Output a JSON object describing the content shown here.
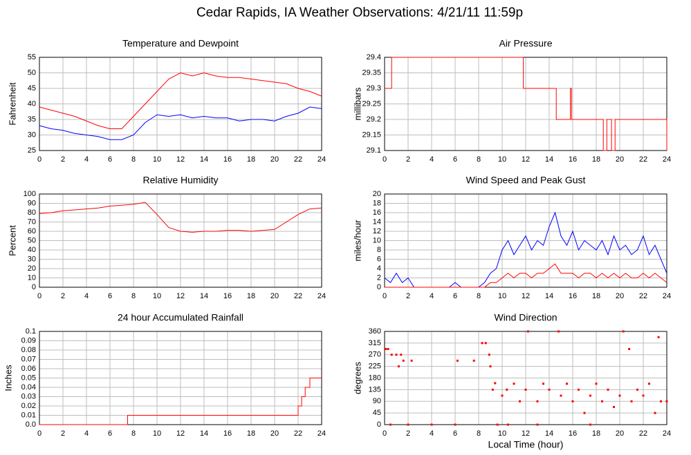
{
  "title": "Cedar Rapids, IA Weather Observations: 4/21/11 11:59p",
  "chart_data": [
    {
      "type": "line",
      "title": "Temperature and Dewpoint",
      "ylabel": "Fahrenheit",
      "grid": true,
      "xlim": [
        0,
        24
      ],
      "xticks": [
        0,
        2,
        4,
        6,
        8,
        10,
        12,
        14,
        16,
        18,
        20,
        22,
        24
      ],
      "ylim": [
        25,
        55
      ],
      "yticks": [
        25,
        30,
        35,
        40,
        45,
        50,
        55
      ],
      "x": [
        0,
        1,
        2,
        3,
        4,
        5,
        6,
        7,
        8,
        9,
        10,
        11,
        12,
        13,
        14,
        15,
        16,
        17,
        18,
        19,
        20,
        21,
        22,
        23,
        24
      ],
      "series": [
        {
          "name": "Temperature",
          "color": "#ff0000",
          "values": [
            39,
            38,
            37,
            36,
            34.5,
            33,
            32,
            32,
            36,
            40,
            44,
            48,
            50,
            49,
            50,
            49,
            48.5,
            48.5,
            48,
            47.5,
            47,
            46.5,
            45,
            44,
            42.5
          ]
        },
        {
          "name": "Dewpoint",
          "color": "#0000ff",
          "values": [
            33,
            32,
            31.5,
            30.5,
            30,
            29.5,
            28.5,
            28.5,
            30,
            34,
            36.5,
            36,
            36.5,
            35.5,
            36,
            35.5,
            35.5,
            34.5,
            35,
            35,
            34.5,
            36,
            37,
            39,
            38.5
          ]
        }
      ]
    },
    {
      "type": "line",
      "title": "Air Pressure",
      "ylabel": "millibars",
      "grid": true,
      "xlim": [
        0,
        24
      ],
      "xticks": [
        0,
        2,
        4,
        6,
        8,
        10,
        12,
        14,
        16,
        18,
        20,
        22,
        24
      ],
      "ylim": [
        29.1,
        29.4
      ],
      "yticks": [
        29.1,
        29.15,
        29.2,
        29.25,
        29.3,
        29.35,
        29.4
      ],
      "x": [
        0,
        0.6,
        0.6,
        11.8,
        11.8,
        14.6,
        14.6,
        15.8,
        15.8,
        15.9,
        15.9,
        18.6,
        18.6,
        18.9,
        18.9,
        19.3,
        19.3,
        19.6,
        19.6,
        24,
        24
      ],
      "series": [
        {
          "name": "Pressure",
          "color": "#ff0000",
          "values": [
            29.3,
            29.3,
            29.4,
            29.4,
            29.3,
            29.3,
            29.2,
            29.2,
            29.3,
            29.3,
            29.2,
            29.2,
            29.1,
            29.1,
            29.2,
            29.2,
            29.1,
            29.1,
            29.2,
            29.2,
            29.1
          ]
        }
      ]
    },
    {
      "type": "line",
      "title": "Relative Humidity",
      "ylabel": "Percent",
      "grid": true,
      "xlim": [
        0,
        24
      ],
      "xticks": [
        0,
        2,
        4,
        6,
        8,
        10,
        12,
        14,
        16,
        18,
        20,
        22,
        24
      ],
      "ylim": [
        0,
        100
      ],
      "yticks": [
        0,
        10,
        20,
        30,
        40,
        50,
        60,
        70,
        80,
        90,
        100
      ],
      "x": [
        0,
        1,
        2,
        3,
        4,
        5,
        6,
        7,
        8,
        9,
        10,
        11,
        12,
        13,
        14,
        15,
        16,
        17,
        18,
        19,
        20,
        21,
        22,
        23,
        24
      ],
      "series": [
        {
          "name": "Humidity",
          "color": "#ff0000",
          "values": [
            79,
            80,
            82,
            83,
            84,
            85,
            87,
            88,
            89,
            91,
            78,
            64,
            60,
            59,
            60,
            60,
            61,
            61,
            60,
            61,
            62,
            70,
            78,
            84,
            85
          ]
        }
      ]
    },
    {
      "type": "line",
      "title": "Wind Speed and Peak Gust",
      "ylabel": "miles/hour",
      "grid": true,
      "xlim": [
        0,
        24
      ],
      "xticks": [
        0,
        2,
        4,
        6,
        8,
        10,
        12,
        14,
        16,
        18,
        20,
        22,
        24
      ],
      "ylim": [
        0,
        20
      ],
      "yticks": [
        0,
        2,
        4,
        6,
        8,
        10,
        12,
        14,
        16,
        18,
        20
      ],
      "x": [
        0,
        0.5,
        1,
        1.5,
        2,
        2.5,
        3,
        3.5,
        4,
        4.5,
        5,
        5.5,
        6,
        6.5,
        7,
        7.5,
        8,
        8.5,
        9,
        9.5,
        10,
        10.5,
        11,
        11.5,
        12,
        12.5,
        13,
        13.5,
        14,
        14.5,
        15,
        15.5,
        16,
        16.5,
        17,
        17.5,
        18,
        18.5,
        19,
        19.5,
        20,
        20.5,
        21,
        21.5,
        22,
        22.5,
        23,
        23.5,
        24
      ],
      "series": [
        {
          "name": "Peak Gust",
          "color": "#0000ff",
          "values": [
            2,
            1,
            3,
            1,
            2,
            0,
            0,
            0,
            0,
            0,
            0,
            0,
            1,
            0,
            0,
            0,
            0,
            1,
            3,
            4,
            8,
            10,
            7,
            9,
            11,
            8,
            10,
            9,
            13,
            16,
            11,
            9,
            12,
            8,
            10,
            9,
            8,
            10,
            7,
            11,
            8,
            9,
            7,
            8,
            11,
            7,
            9,
            6,
            3
          ]
        },
        {
          "name": "Wind Speed",
          "color": "#ff0000",
          "values": [
            0,
            0,
            0,
            0,
            0,
            0,
            0,
            0,
            0,
            0,
            0,
            0,
            0,
            0,
            0,
            0,
            0,
            0,
            1,
            1,
            2,
            3,
            2,
            3,
            3,
            2,
            3,
            3,
            4,
            5,
            3,
            3,
            3,
            2,
            3,
            3,
            2,
            3,
            2,
            3,
            2,
            3,
            2,
            2,
            3,
            2,
            3,
            2,
            1
          ]
        }
      ]
    },
    {
      "type": "line",
      "title": "24 hour Accumulated Rainfall",
      "ylabel": "Inches",
      "grid": true,
      "xlim": [
        0,
        24
      ],
      "xticks": [
        0,
        2,
        4,
        6,
        8,
        10,
        12,
        14,
        16,
        18,
        20,
        22,
        24
      ],
      "ylim": [
        0,
        0.1
      ],
      "yticks": [
        {
          "value": 0,
          "label": "0.0"
        },
        0.01,
        0.02,
        0.03,
        0.04,
        0.05,
        0.06,
        0.07,
        0.08,
        0.09,
        0.1
      ],
      "x": [
        0,
        7.5,
        7.5,
        22,
        22,
        22.3,
        22.3,
        22.6,
        22.6,
        23,
        23,
        24
      ],
      "series": [
        {
          "name": "Rainfall",
          "color": "#ff0000",
          "values": [
            0,
            0,
            0.01,
            0.01,
            0.02,
            0.02,
            0.03,
            0.03,
            0.04,
            0.04,
            0.05,
            0.05
          ]
        }
      ]
    },
    {
      "type": "scatter",
      "title": "Wind Direction",
      "ylabel": "degrees",
      "xlabel": "Local Time (hour)",
      "grid": true,
      "xlim": [
        0,
        24
      ],
      "xticks": [
        0,
        2,
        4,
        6,
        8,
        10,
        12,
        14,
        16,
        18,
        20,
        22,
        24
      ],
      "ylim": [
        0,
        360
      ],
      "yticks": [
        0,
        45,
        90,
        135,
        180,
        225,
        270,
        315,
        360
      ],
      "x": [
        0.1,
        0.3,
        0.6,
        1,
        1.2,
        1.4,
        1.6,
        2.3,
        0.5,
        2,
        4,
        6,
        6.2,
        7.6,
        8.3,
        8.6,
        8.9,
        9,
        9.2,
        9.4,
        9.6,
        10,
        10.4,
        10.5,
        11,
        11.5,
        12,
        12.2,
        13,
        13,
        13.5,
        14,
        14.8,
        15,
        15.5,
        16,
        16.5,
        17,
        17.5,
        17.5,
        18,
        18.5,
        19,
        19.5,
        20,
        20.3,
        20.8,
        21,
        21.5,
        22,
        22.5,
        23,
        23.3,
        23.5,
        24
      ],
      "series": [
        {
          "name": "Direction",
          "color": "#ff0000",
          "values": [
            292,
            292,
            270,
            270,
            225,
            270,
            247,
            247,
            0,
            0,
            0,
            0,
            247,
            247,
            315,
            315,
            270,
            225,
            135,
            160,
            0,
            112,
            135,
            0,
            158,
            90,
            135,
            360,
            90,
            0,
            158,
            135,
            360,
            112,
            158,
            90,
            135,
            45,
            112,
            0,
            158,
            90,
            135,
            68,
            112,
            360,
            292,
            90,
            135,
            112,
            158,
            45,
            338,
            90,
            90
          ]
        }
      ]
    }
  ]
}
